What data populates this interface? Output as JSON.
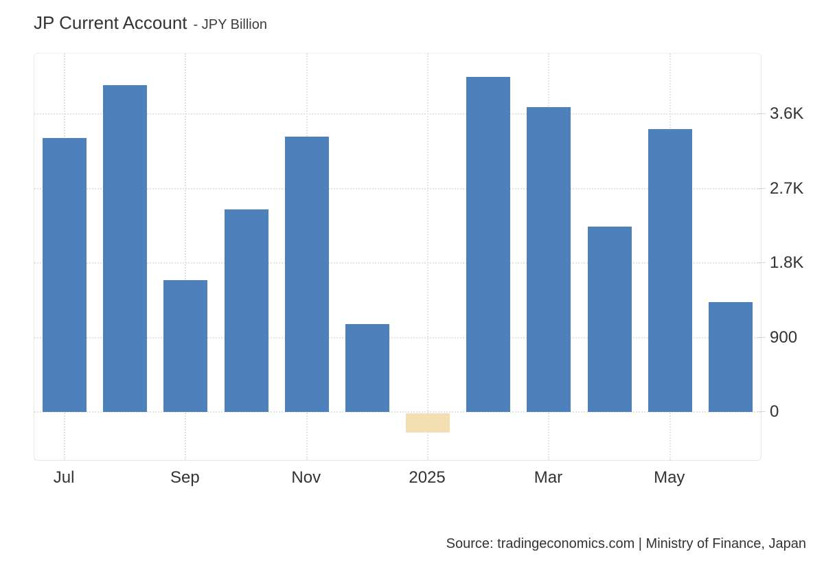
{
  "header": {
    "title": "JP Current Account",
    "subtitle": "- JPY Billion"
  },
  "chart_data": {
    "type": "bar",
    "title": "JP Current Account",
    "subtitle": "JPY Billion",
    "categories": [
      "Jul 2024",
      "Aug 2024",
      "Sep 2024",
      "Oct 2024",
      "Nov 2024",
      "Dec 2024",
      "Jan 2025",
      "Feb 2025",
      "Mar 2025",
      "Apr 2025",
      "May 2025",
      "Jun 2025"
    ],
    "values": [
      3310,
      3950,
      1590,
      2450,
      3330,
      1060,
      -250,
      4050,
      3680,
      2240,
      3420,
      1330
    ],
    "unit": "JPY Billion",
    "highlight_index": 6,
    "x_ticks": [
      {
        "label": "Jul",
        "index": 0
      },
      {
        "label": "Sep",
        "index": 2
      },
      {
        "label": "Nov",
        "index": 4
      },
      {
        "label": "2025",
        "index": 6
      },
      {
        "label": "Mar",
        "index": 8
      },
      {
        "label": "May",
        "index": 10
      }
    ],
    "y_ticks": [
      {
        "label": "0",
        "value": 0
      },
      {
        "label": "900",
        "value": 900
      },
      {
        "label": "1.8K",
        "value": 1800
      },
      {
        "label": "2.7K",
        "value": 2700
      },
      {
        "label": "3.6K",
        "value": 3600
      }
    ],
    "ylim": [
      -580,
      4330
    ],
    "grid": true,
    "legend": "none",
    "colors": {
      "bar_positive": "#4e80bb",
      "bar_negative": "#f4dfb2",
      "gridline": "#e2e2e2",
      "axis_text": "#333333"
    }
  },
  "footer": {
    "source": "Source: tradingeconomics.com | Ministry of Finance, Japan"
  }
}
